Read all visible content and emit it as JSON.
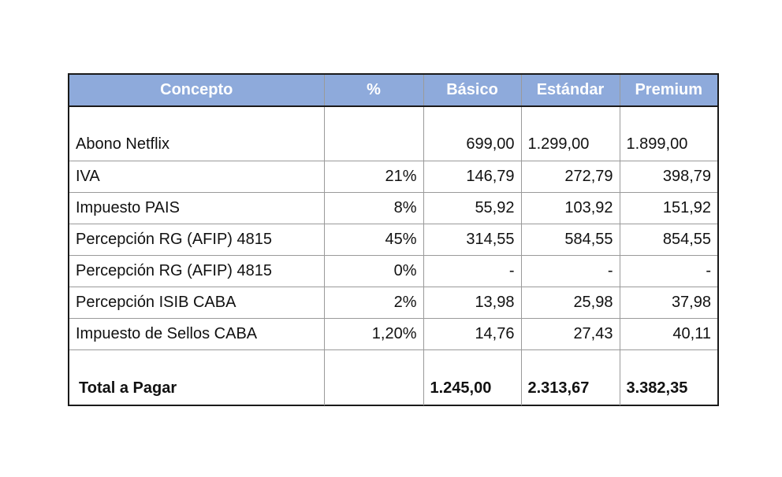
{
  "table": {
    "headers": [
      "Concepto",
      "%",
      "Básico",
      "Estándar",
      "Premium"
    ],
    "rows": [
      {
        "concepto": "Abono Netflix",
        "pct": "",
        "basico": "699,00",
        "estandar": "1.299,00",
        "premium": "1.899,00"
      },
      {
        "concepto": "IVA",
        "pct": "21%",
        "basico": "146,79",
        "estandar": "272,79",
        "premium": "398,79"
      },
      {
        "concepto": "Impuesto PAIS",
        "pct": "8%",
        "basico": "55,92",
        "estandar": "103,92",
        "premium": "151,92"
      },
      {
        "concepto": "Percepción RG (AFIP) 4815",
        "pct": "45%",
        "basico": "314,55",
        "estandar": "584,55",
        "premium": "854,55"
      },
      {
        "concepto": "Percepción RG (AFIP) 4815",
        "pct": "0%",
        "basico": "-",
        "estandar": "-",
        "premium": "-"
      },
      {
        "concepto": "Percepción ISIB CABA",
        "pct": "2%",
        "basico": "13,98",
        "estandar": "25,98",
        "premium": "37,98"
      },
      {
        "concepto": "Impuesto de Sellos CABA",
        "pct": "1,20%",
        "basico": "14,76",
        "estandar": "27,43",
        "premium": "40,11"
      }
    ],
    "total": {
      "concepto": "Total a Pagar",
      "pct": "",
      "basico": "1.245,00",
      "estandar": "2.313,67",
      "premium": "3.382,35"
    }
  },
  "colors": {
    "header_bg": "#8eaadb",
    "header_text": "#ffffff",
    "border": "#1a1a1a"
  }
}
